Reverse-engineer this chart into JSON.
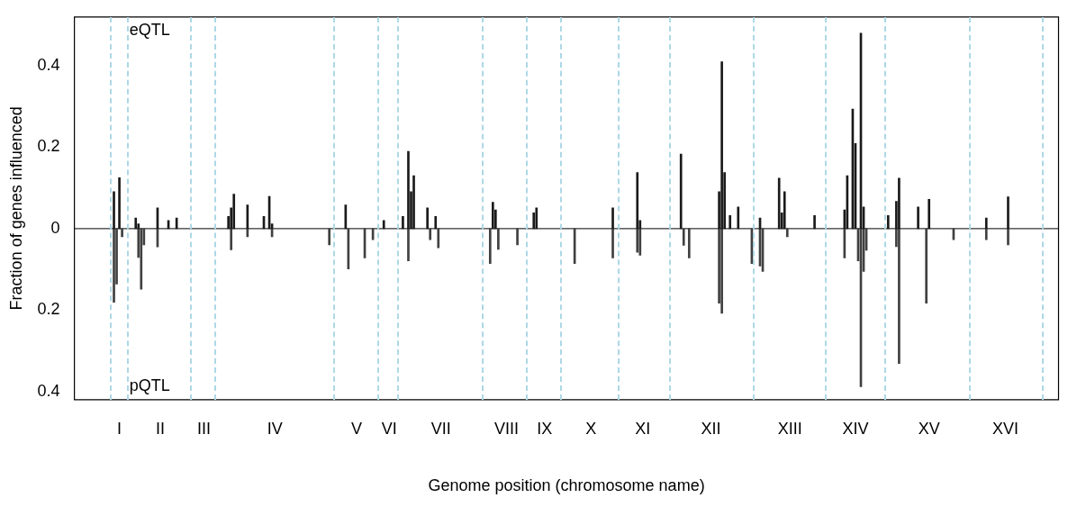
{
  "chart_data": {
    "type": "bar",
    "xlabel": "Genome position (chromosome name)",
    "ylabel": "Fraction of genes influenced",
    "categories": [
      null,
      null,
      null,
      null,
      null,
      null,
      null,
      null,
      null,
      null,
      null,
      null,
      null,
      null,
      null,
      null,
      "I",
      null,
      null,
      null,
      null,
      null,
      null,
      null,
      null,
      null,
      null,
      null,
      null,
      null,
      null,
      "II",
      null,
      null,
      null,
      null,
      null,
      null,
      null,
      null,
      null,
      null,
      null,
      null,
      null,
      null,
      null,
      "III",
      null,
      null,
      null,
      null,
      null,
      null,
      null,
      null,
      null,
      null,
      null,
      null,
      null,
      null,
      null,
      null,
      null,
      null,
      null,
      null,
      null,
      null,
      null,
      null,
      null,
      "IV",
      null,
      null,
      null,
      null,
      null,
      null,
      null,
      null,
      null,
      null,
      null,
      null,
      null,
      null,
      null,
      null,
      null,
      null,
      null,
      null,
      null,
      null,
      null,
      null,
      null,
      null,
      null,
      null,
      null,
      "V",
      null,
      null,
      null,
      null,
      null,
      null,
      null,
      null,
      null,
      null,
      null,
      "VI",
      null,
      null,
      null,
      null,
      null,
      null,
      null,
      null,
      null,
      null,
      null,
      null,
      null,
      null,
      null,
      null,
      null,
      null,
      "VII",
      null,
      null,
      null,
      null,
      null,
      null,
      null,
      null,
      null,
      null,
      null,
      null,
      null,
      null,
      null,
      null,
      null,
      null,
      null,
      null,
      null,
      null,
      null,
      "VIII",
      null,
      null,
      null,
      null,
      null,
      null,
      null,
      null,
      null,
      null,
      null,
      null,
      null,
      "IX",
      null,
      null,
      null,
      null,
      null,
      null,
      null,
      null,
      null,
      null,
      null,
      null,
      null,
      null,
      null,
      null,
      "X",
      null,
      null,
      null,
      null,
      null,
      null,
      null,
      null,
      null,
      null,
      null,
      null,
      null,
      null,
      null,
      null,
      null,
      null,
      "XI",
      null,
      null,
      null,
      null,
      null,
      null,
      null,
      null,
      null,
      null,
      null,
      null,
      null,
      null,
      null,
      null,
      null,
      null,
      null,
      null,
      null,
      null,
      null,
      null,
      "XII",
      null,
      null,
      null,
      null,
      null,
      null,
      null,
      null,
      null,
      null,
      null,
      null,
      null,
      null,
      null,
      null,
      null,
      null,
      null,
      null,
      null,
      null,
      null,
      null,
      null,
      null,
      null,
      null,
      "XIII",
      null,
      null,
      null,
      null,
      null,
      null,
      null,
      null,
      null,
      null,
      null,
      null,
      null,
      null,
      null,
      null,
      null,
      null,
      null,
      null,
      null,
      null,
      null,
      "XIV",
      null,
      null,
      null,
      null,
      null,
      null,
      null,
      null,
      null,
      null,
      null,
      null,
      null,
      null,
      null,
      null,
      null,
      null,
      null,
      null,
      null,
      null,
      null,
      null,
      null,
      null,
      "XV",
      null,
      null,
      null,
      null,
      null,
      null,
      null,
      null,
      null,
      null,
      null,
      null,
      null,
      null,
      null,
      null,
      null,
      null,
      null,
      null,
      null,
      null,
      null,
      null,
      null,
      null,
      null,
      "XVI",
      null,
      null,
      null,
      null,
      null,
      null,
      null,
      null,
      null,
      null,
      null,
      null,
      null,
      null,
      null,
      null,
      null,
      null,
      null
    ],
    "ylim": [
      -0.42,
      0.52
    ],
    "yticks": [
      {
        "value": -0.4,
        "label": "0.4"
      },
      {
        "value": -0.2,
        "label": "0.2"
      },
      0,
      0.2,
      0.4
    ],
    "grid": false,
    "legend": false,
    "annotations": [
      "eQTL",
      "pQTL"
    ],
    "ref_lines": [
      {
        "axis": "y",
        "value": 0,
        "color": "#000000",
        "line_style": "solid"
      }
    ],
    "series": [
      {
        "color": "#1a1a1a",
        "values": [
          null,
          null,
          null,
          null,
          null,
          null,
          null,
          null,
          null,
          null,
          null,
          null,
          null,
          null,
          0.091,
          null,
          0.125,
          null,
          null,
          null,
          null,
          null,
          0.026,
          0.012,
          null,
          null,
          null,
          null,
          null,
          null,
          0.051,
          null,
          null,
          null,
          0.02,
          null,
          null,
          0.026,
          null,
          null,
          null,
          null,
          null,
          null,
          null,
          null,
          null,
          null,
          null,
          null,
          null,
          null,
          null,
          null,
          null,
          null,
          0.03,
          0.051,
          0.085,
          null,
          null,
          null,
          null,
          0.058,
          null,
          null,
          null,
          null,
          null,
          0.03,
          null,
          0.079,
          0.012,
          null,
          null,
          null,
          null,
          null,
          null,
          null,
          null,
          null,
          null,
          null,
          null,
          null,
          null,
          null,
          null,
          null,
          null,
          null,
          null,
          null,
          null,
          null,
          null,
          null,
          null,
          0.058,
          null,
          null,
          null,
          null,
          null,
          null,
          null,
          null,
          null,
          null,
          null,
          null,
          null,
          0.02,
          null,
          null,
          null,
          null,
          null,
          null,
          0.03,
          null,
          0.19,
          0.091,
          0.13,
          null,
          null,
          null,
          null,
          0.051,
          null,
          null,
          0.03,
          null,
          null,
          null,
          null,
          null,
          null,
          null,
          null,
          null,
          null,
          null,
          null,
          null,
          null,
          null,
          null,
          null,
          null,
          null,
          null,
          0.065,
          0.046,
          null,
          null,
          null,
          null,
          null,
          null,
          null,
          null,
          null,
          null,
          null,
          null,
          null,
          0.039,
          0.051,
          null,
          null,
          null,
          null,
          null,
          null,
          null,
          null,
          null,
          null,
          null,
          null,
          null,
          null,
          null,
          null,
          null,
          null,
          null,
          null,
          null,
          null,
          null,
          null,
          null,
          null,
          null,
          0.051,
          null,
          null,
          null,
          null,
          null,
          null,
          null,
          null,
          0.138,
          0.02,
          null,
          null,
          null,
          null,
          null,
          null,
          null,
          null,
          null,
          null,
          null,
          null,
          null,
          null,
          0.183,
          null,
          null,
          null,
          null,
          null,
          null,
          null,
          null,
          null,
          null,
          null,
          null,
          null,
          0.091,
          0.41,
          0.138,
          null,
          0.032,
          null,
          null,
          0.053,
          null,
          null,
          null,
          null,
          null,
          null,
          null,
          0.026,
          null,
          null,
          null,
          null,
          null,
          null,
          0.124,
          0.039,
          0.091,
          null,
          null,
          null,
          null,
          null,
          null,
          null,
          null,
          null,
          null,
          0.032,
          null,
          null,
          null,
          null,
          null,
          null,
          null,
          null,
          null,
          null,
          0.046,
          0.13,
          null,
          0.294,
          0.209,
          null,
          0.48,
          0.053,
          null,
          null,
          null,
          null,
          null,
          null,
          null,
          null,
          0.032,
          null,
          null,
          0.067,
          0.124,
          null,
          null,
          null,
          null,
          null,
          null,
          0.053,
          null,
          null,
          null,
          0.072,
          null,
          null,
          null,
          null,
          null,
          null,
          null,
          null,
          null,
          null,
          null,
          null,
          null,
          null,
          null,
          null,
          null,
          null,
          null,
          null,
          0.026,
          null,
          null,
          null,
          null,
          null,
          null,
          null,
          0.078,
          null,
          null,
          null,
          null,
          null,
          null,
          null,
          null,
          null,
          null,
          null,
          null,
          null,
          null,
          null,
          null,
          null,
          null
        ]
      },
      {
        "color": "#404040",
        "values": [
          null,
          null,
          null,
          null,
          null,
          null,
          null,
          null,
          null,
          null,
          null,
          null,
          null,
          null,
          -0.181,
          -0.136,
          null,
          -0.02,
          null,
          null,
          null,
          null,
          null,
          -0.071,
          -0.149,
          -0.04,
          null,
          null,
          null,
          null,
          -0.045,
          null,
          null,
          null,
          null,
          null,
          null,
          null,
          null,
          null,
          null,
          null,
          null,
          null,
          null,
          null,
          null,
          null,
          null,
          null,
          null,
          null,
          null,
          null,
          null,
          null,
          null,
          -0.052,
          null,
          null,
          null,
          null,
          null,
          -0.02,
          null,
          null,
          null,
          null,
          null,
          null,
          null,
          null,
          -0.02,
          null,
          null,
          null,
          null,
          null,
          null,
          null,
          null,
          null,
          null,
          null,
          null,
          null,
          null,
          null,
          null,
          null,
          null,
          null,
          null,
          -0.04,
          null,
          null,
          null,
          null,
          null,
          null,
          -0.099,
          null,
          null,
          null,
          null,
          null,
          -0.072,
          null,
          null,
          -0.027,
          null,
          null,
          null,
          null,
          null,
          null,
          null,
          null,
          null,
          null,
          null,
          null,
          -0.079,
          null,
          null,
          null,
          null,
          null,
          null,
          null,
          -0.027,
          null,
          null,
          -0.047,
          null,
          null,
          null,
          null,
          null,
          null,
          null,
          null,
          null,
          null,
          null,
          null,
          null,
          null,
          null,
          null,
          null,
          null,
          -0.086,
          null,
          null,
          -0.051,
          null,
          null,
          null,
          null,
          null,
          null,
          -0.04,
          null,
          null,
          null,
          null,
          null,
          null,
          null,
          null,
          null,
          null,
          null,
          null,
          null,
          null,
          null,
          null,
          null,
          null,
          null,
          null,
          -0.086,
          null,
          null,
          null,
          null,
          null,
          null,
          null,
          null,
          null,
          null,
          null,
          null,
          null,
          -0.072,
          null,
          null,
          null,
          null,
          null,
          null,
          null,
          null,
          -0.058,
          -0.065,
          null,
          null,
          null,
          null,
          null,
          null,
          null,
          null,
          null,
          null,
          null,
          null,
          null,
          null,
          null,
          -0.041,
          null,
          -0.072,
          null,
          null,
          null,
          null,
          null,
          null,
          null,
          null,
          null,
          null,
          -0.183,
          -0.208,
          null,
          null,
          null,
          null,
          null,
          null,
          null,
          null,
          null,
          null,
          -0.086,
          null,
          null,
          -0.092,
          -0.105,
          null,
          null,
          null,
          null,
          null,
          null,
          null,
          null,
          -0.02,
          null,
          null,
          null,
          null,
          null,
          null,
          null,
          null,
          null,
          null,
          null,
          null,
          null,
          null,
          null,
          null,
          null,
          null,
          null,
          null,
          -0.072,
          null,
          null,
          null,
          null,
          -0.079,
          -0.388,
          -0.105,
          -0.053,
          null,
          null,
          null,
          null,
          null,
          null,
          null,
          null,
          null,
          null,
          -0.044,
          -0.331,
          null,
          null,
          null,
          null,
          null,
          null,
          null,
          null,
          null,
          -0.183,
          null,
          null,
          null,
          null,
          null,
          null,
          null,
          null,
          null,
          -0.027,
          null,
          null,
          null,
          null,
          null,
          null,
          null,
          null,
          null,
          null,
          null,
          -0.027,
          null,
          null,
          null,
          null,
          null,
          null,
          null,
          -0.04,
          null,
          null,
          null,
          null,
          null,
          null,
          null,
          null,
          null,
          null,
          null,
          null,
          null,
          null,
          null,
          null,
          null,
          null
        ]
      }
    ]
  }
}
